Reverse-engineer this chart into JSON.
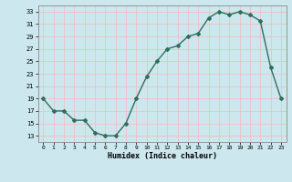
{
  "x": [
    0,
    1,
    2,
    3,
    4,
    5,
    6,
    7,
    8,
    9,
    10,
    11,
    12,
    13,
    14,
    15,
    16,
    17,
    18,
    19,
    20,
    21,
    22,
    23
  ],
  "y": [
    19,
    17,
    17,
    15.5,
    15.5,
    13.5,
    13,
    13,
    15,
    19,
    22.5,
    25,
    27,
    27.5,
    29,
    29.5,
    32,
    33,
    32.5,
    33,
    32.5,
    31.5,
    24,
    19
  ],
  "xlabel": "Humidex (Indice chaleur)",
  "xlim": [
    -0.5,
    23.5
  ],
  "ylim": [
    12,
    34
  ],
  "yticks": [
    13,
    15,
    17,
    19,
    21,
    23,
    25,
    27,
    29,
    31,
    33
  ],
  "xticks": [
    0,
    1,
    2,
    3,
    4,
    5,
    6,
    7,
    8,
    9,
    10,
    11,
    12,
    13,
    14,
    15,
    16,
    17,
    18,
    19,
    20,
    21,
    22,
    23
  ],
  "line_color": "#2e6e5e",
  "marker_color": "#2e6e5e",
  "bg_color": "#cce8ee",
  "grid_color_v": "#f5b8b8",
  "grid_color_h": "#f5b8b8"
}
